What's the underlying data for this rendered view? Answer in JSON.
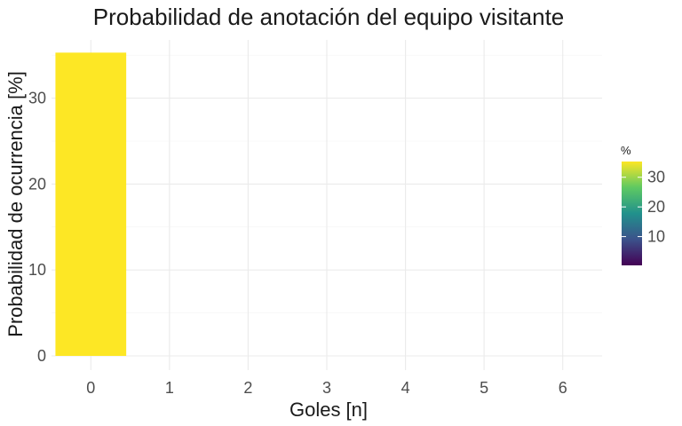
{
  "chart_data": {
    "type": "bar",
    "title": "Probabilidad de anotación del equipo visitante",
    "xlabel": "Goles [n]",
    "ylabel": "Probabilidad de ocurrencia [%]",
    "categories": [
      "0",
      "1",
      "2",
      "3",
      "4",
      "5",
      "6"
    ],
    "values": [
      35.3,
      0,
      0,
      0,
      0,
      0,
      0
    ],
    "ylim": [
      0,
      36
    ],
    "yticks": [
      0,
      10,
      20,
      30
    ],
    "grid": true,
    "fill_scale": {
      "title": "%",
      "palette": "viridis",
      "range": [
        0.3,
        35.3
      ],
      "ticks": [
        10,
        20,
        30
      ],
      "stops": [
        "#440154",
        "#3b528b",
        "#21918c",
        "#5ec962",
        "#fde725"
      ]
    },
    "legend_position": "right"
  }
}
